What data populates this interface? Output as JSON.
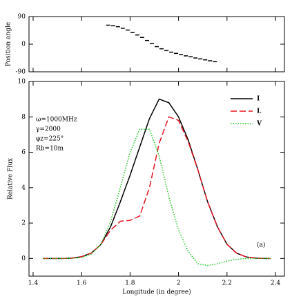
{
  "chart_data": [
    {
      "type": "scatter",
      "ylabel": "Position angle",
      "x": [
        1.71,
        1.73,
        1.75,
        1.77,
        1.79,
        1.81,
        1.83,
        1.85,
        1.87,
        1.89,
        1.91,
        1.93,
        1.95,
        1.97,
        1.99,
        2.01,
        2.03,
        2.05,
        2.07,
        2.09,
        2.11,
        2.13,
        2.15
      ],
      "values": [
        62,
        60,
        57,
        52,
        46,
        38,
        30,
        22,
        12,
        2,
        -8,
        -15,
        -21,
        -26,
        -30,
        -34,
        -38,
        -41,
        -45,
        -48,
        -51,
        -54,
        -57
      ],
      "color": "#000000",
      "xlim": [
        1.383,
        2.437
      ],
      "xticks": [
        1.4,
        1.6,
        1.8,
        2.0,
        2.2,
        2.4
      ],
      "ylim": [
        -90,
        90
      ],
      "yticks": [
        -90,
        0,
        90
      ]
    },
    {
      "type": "line",
      "xlabel": "Longitude (in degree)",
      "ylabel": "Relative Flux",
      "x": [
        1.44,
        1.48,
        1.52,
        1.56,
        1.6,
        1.64,
        1.68,
        1.72,
        1.76,
        1.8,
        1.84,
        1.88,
        1.92,
        1.96,
        2.0,
        2.04,
        2.08,
        2.12,
        2.16,
        2.2,
        2.24,
        2.28,
        2.32,
        2.36,
        2.38
      ],
      "series": [
        {
          "name": "I",
          "color": "#000000",
          "dash": "solid",
          "values": [
            0,
            0,
            0,
            0.02,
            0.1,
            0.3,
            0.8,
            1.8,
            3.2,
            4.7,
            6.3,
            7.9,
            9.0,
            8.8,
            8.0,
            6.7,
            5.0,
            3.2,
            1.8,
            0.8,
            0.3,
            0.08,
            0.02,
            0,
            0
          ]
        },
        {
          "name": "L",
          "color": "#e8141e",
          "dash": "dashed",
          "values": [
            0,
            0,
            0,
            0.02,
            0.1,
            0.3,
            0.8,
            1.6,
            2.1,
            2.15,
            2.4,
            4.0,
            6.5,
            8.0,
            7.8,
            6.6,
            5.0,
            3.2,
            1.8,
            0.8,
            0.3,
            0.08,
            0.02,
            0,
            0
          ]
        },
        {
          "name": "V",
          "color": "#1ec81e",
          "dash": "dotted",
          "values": [
            0,
            0,
            0,
            0.01,
            0.05,
            0.25,
            0.8,
            2.1,
            4.0,
            6.0,
            7.3,
            7.3,
            5.8,
            3.5,
            1.6,
            0.4,
            -0.3,
            -0.4,
            -0.3,
            -0.15,
            -0.05,
            0,
            0,
            0,
            0
          ]
        }
      ],
      "xlim": [
        1.383,
        2.437
      ],
      "xticks": [
        1.4,
        1.6,
        1.8,
        2.0,
        2.2,
        2.4
      ],
      "ylim": [
        -1,
        10
      ],
      "yticks": [
        0,
        2,
        4,
        6,
        8,
        10
      ],
      "legend": "upper right",
      "annotations": [
        "ω=1000MHz",
        "γ=2000",
        "φz=225°",
        "Rb=10m"
      ],
      "panel_label": "(a)"
    }
  ]
}
